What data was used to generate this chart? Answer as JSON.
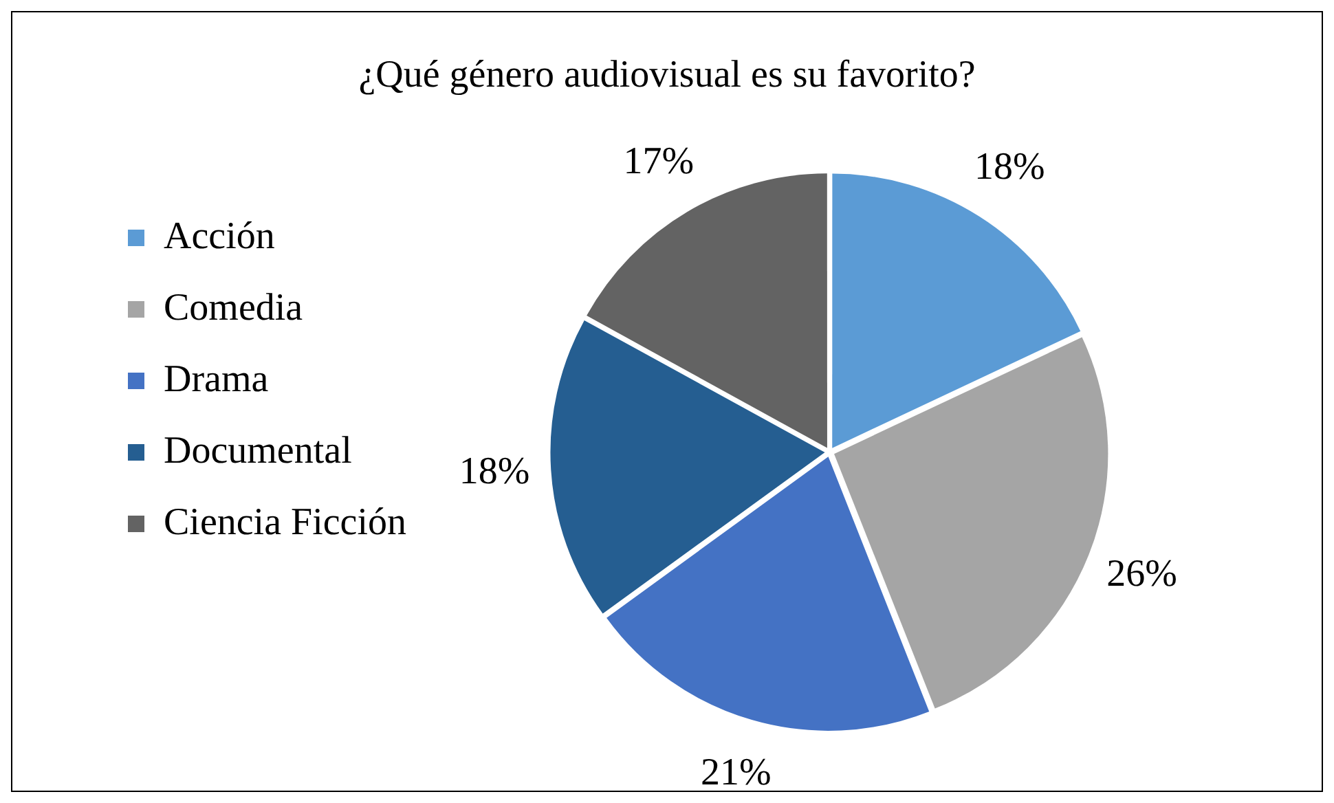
{
  "chart_data": {
    "type": "pie",
    "title": "¿Qué género audiovisual es su favorito?",
    "categories": [
      "Acción",
      "Comedia",
      "Drama",
      "Documental",
      "Ciencia Ficción"
    ],
    "values": [
      18,
      26,
      21,
      18,
      17
    ],
    "colors": [
      "#5b9bd5",
      "#a5a5a5",
      "#4472c4",
      "#255e91",
      "#636363"
    ],
    "value_labels": [
      "18%",
      "26%",
      "21%",
      "18%",
      "17%"
    ],
    "legend": "left"
  }
}
